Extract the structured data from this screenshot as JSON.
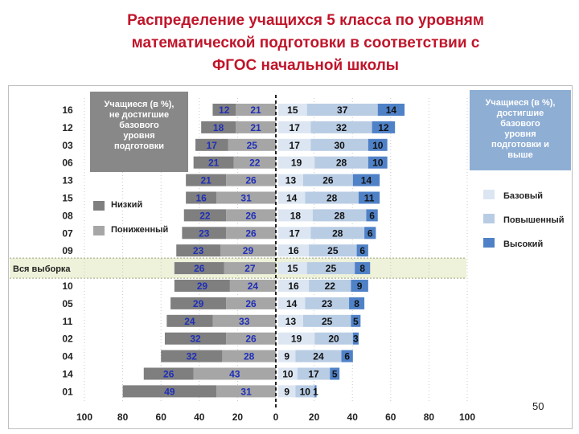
{
  "title_lines": [
    "Распределение учащихся 5 класса по уровням",
    "математической подготовки в соответствии с",
    "ФГОС начальной школы"
  ],
  "left_box_lines": [
    "Учащиеся (в %),",
    "не достигшие",
    "базового",
    "уровня",
    "подготовки"
  ],
  "right_box_lines": [
    "Учащиеся (в %),",
    "достигшие",
    "базового",
    "уровня",
    "подготовки и",
    "выше"
  ],
  "legend": {
    "left": [
      {
        "label": "Низкий",
        "color": "#7f7f7f"
      },
      {
        "label": "Пониженный",
        "color": "#a6a6a6"
      }
    ],
    "right": [
      {
        "label": "Базовый",
        "color": "#dce6f2"
      },
      {
        "label": "Повышенный",
        "color": "#b8cce4"
      },
      {
        "label": "Высокий",
        "color": "#4f81c7"
      }
    ]
  },
  "page_number": "50",
  "chart_data": {
    "type": "bar",
    "orientation": "horizontal-diverging",
    "categories": [
      "16",
      "12",
      "03",
      "06",
      "13",
      "15",
      "08",
      "07",
      "09",
      "Вся выборка",
      "10",
      "05",
      "11",
      "02",
      "04",
      "14",
      "01"
    ],
    "highlighted_category": "Вся выборка",
    "left_series": [
      {
        "name": "Низкий",
        "color": "#7f7f7f",
        "values": [
          12,
          18,
          17,
          21,
          21,
          16,
          22,
          23,
          23,
          26,
          29,
          29,
          24,
          32,
          32,
          26,
          49
        ]
      },
      {
        "name": "Пониженный",
        "color": "#a6a6a6",
        "values": [
          21,
          21,
          25,
          22,
          26,
          31,
          26,
          26,
          29,
          27,
          24,
          26,
          33,
          26,
          28,
          43,
          31
        ]
      }
    ],
    "right_series": [
      {
        "name": "Базовый",
        "color": "#dce6f2",
        "values": [
          15,
          17,
          17,
          19,
          13,
          14,
          18,
          17,
          16,
          15,
          16,
          14,
          13,
          19,
          9,
          10,
          9
        ]
      },
      {
        "name": "Повышенный",
        "color": "#b8cce4",
        "values": [
          37,
          32,
          30,
          28,
          26,
          28,
          28,
          28,
          25,
          25,
          22,
          23,
          25,
          20,
          24,
          17,
          10
        ]
      },
      {
        "name": "Высокий",
        "color": "#4f81c7",
        "values": [
          14,
          12,
          10,
          10,
          14,
          11,
          6,
          6,
          6,
          8,
          9,
          8,
          5,
          3,
          6,
          5,
          1
        ]
      }
    ],
    "x_ticks": [
      "100",
      "80",
      "60",
      "40",
      "20",
      "0",
      "20",
      "40",
      "60",
      "80",
      "100"
    ],
    "xlim": [
      -100,
      100
    ],
    "value_label_color": "#1f2fb8"
  }
}
